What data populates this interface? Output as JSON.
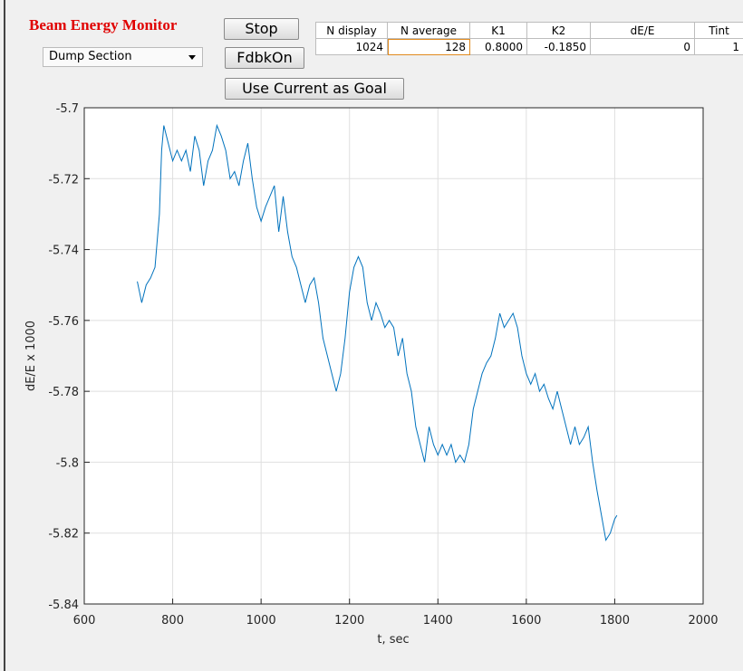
{
  "header": {
    "title": "Beam Energy Monitor"
  },
  "controls": {
    "dropdown": "Dump Section",
    "stop": "Stop",
    "feedback": "FdbkOn",
    "goal": "Use Current as Goal"
  },
  "table": {
    "columns": [
      "N display",
      "N average",
      "K1",
      "K2",
      "dE/E",
      "Tint"
    ],
    "rows": [
      [
        "1024",
        "128",
        "0.8000",
        "-0.1850",
        "0",
        "1"
      ]
    ]
  },
  "chart_data": {
    "type": "line",
    "x_label": "t, sec",
    "y_label": "dE/E x 1000",
    "color": "#0072bd",
    "grid": true,
    "xlim": [
      600,
      2000
    ],
    "xticks": [
      600,
      800,
      1000,
      1200,
      1400,
      1600,
      1800,
      2000
    ],
    "ylim": [
      -5.84,
      -5.7
    ],
    "yticks": [
      -5.7,
      -5.72,
      -5.74,
      -5.76,
      -5.78,
      -5.8,
      -5.82,
      -5.84
    ],
    "x": [
      720,
      730,
      740,
      750,
      760,
      770,
      775,
      780,
      790,
      800,
      810,
      820,
      830,
      840,
      850,
      860,
      870,
      880,
      890,
      900,
      910,
      920,
      930,
      940,
      950,
      960,
      970,
      980,
      990,
      1000,
      1010,
      1020,
      1030,
      1040,
      1050,
      1060,
      1070,
      1080,
      1090,
      1100,
      1110,
      1120,
      1130,
      1140,
      1150,
      1160,
      1170,
      1180,
      1190,
      1200,
      1210,
      1220,
      1230,
      1240,
      1250,
      1260,
      1270,
      1280,
      1290,
      1300,
      1310,
      1320,
      1330,
      1340,
      1350,
      1360,
      1370,
      1380,
      1390,
      1400,
      1410,
      1420,
      1430,
      1440,
      1450,
      1460,
      1470,
      1480,
      1490,
      1500,
      1510,
      1520,
      1530,
      1540,
      1550,
      1560,
      1570,
      1580,
      1590,
      1600,
      1610,
      1620,
      1630,
      1640,
      1650,
      1660,
      1670,
      1680,
      1690,
      1700,
      1710,
      1720,
      1730,
      1740,
      1750,
      1760,
      1770,
      1780,
      1790,
      1800,
      1805
    ],
    "values": [
      -5.749,
      -5.755,
      -5.75,
      -5.748,
      -5.745,
      -5.73,
      -5.712,
      -5.705,
      -5.71,
      -5.715,
      -5.712,
      -5.715,
      -5.712,
      -5.718,
      -5.708,
      -5.712,
      -5.722,
      -5.715,
      -5.712,
      -5.705,
      -5.708,
      -5.712,
      -5.72,
      -5.718,
      -5.722,
      -5.715,
      -5.71,
      -5.72,
      -5.728,
      -5.732,
      -5.728,
      -5.725,
      -5.722,
      -5.735,
      -5.725,
      -5.735,
      -5.742,
      -5.745,
      -5.75,
      -5.755,
      -5.75,
      -5.748,
      -5.755,
      -5.765,
      -5.77,
      -5.775,
      -5.78,
      -5.775,
      -5.765,
      -5.752,
      -5.745,
      -5.742,
      -5.745,
      -5.755,
      -5.76,
      -5.755,
      -5.758,
      -5.762,
      -5.76,
      -5.762,
      -5.77,
      -5.765,
      -5.775,
      -5.78,
      -5.79,
      -5.795,
      -5.8,
      -5.79,
      -5.795,
      -5.798,
      -5.795,
      -5.798,
      -5.795,
      -5.8,
      -5.798,
      -5.8,
      -5.795,
      -5.785,
      -5.78,
      -5.775,
      -5.772,
      -5.77,
      -5.765,
      -5.758,
      -5.762,
      -5.76,
      -5.758,
      -5.762,
      -5.77,
      -5.775,
      -5.778,
      -5.775,
      -5.78,
      -5.778,
      -5.782,
      -5.785,
      -5.78,
      -5.785,
      -5.79,
      -5.795,
      -5.79,
      -5.795,
      -5.793,
      -5.79,
      -5.8,
      -5.808,
      -5.815,
      -5.822,
      -5.82,
      -5.816,
      -5.815
    ]
  }
}
